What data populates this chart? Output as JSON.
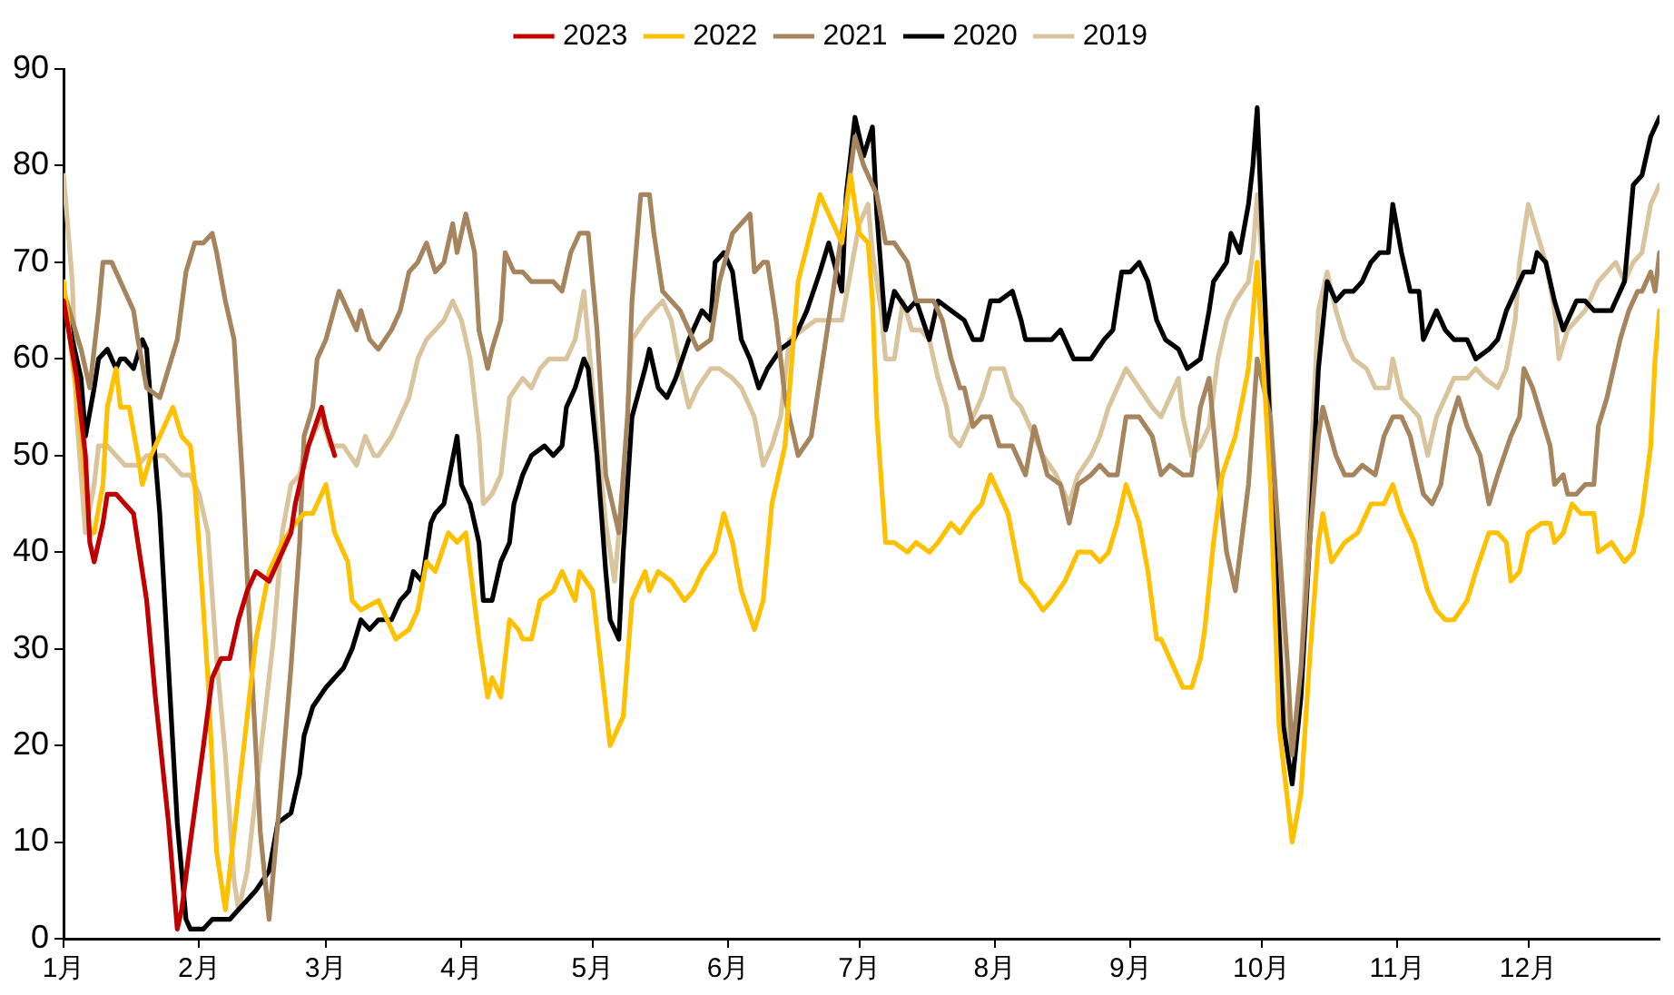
{
  "chart_data": {
    "type": "line",
    "legend": "top",
    "marker": "none",
    "xlim": [
      "--01-01",
      "--12-31"
    ],
    "xticks": [
      {
        "value": "--01-01",
        "label": "1月"
      },
      {
        "value": "--02-01",
        "label": "2月"
      },
      {
        "value": "--03-01",
        "label": "3月"
      },
      {
        "value": "--04-01",
        "label": "4月"
      },
      {
        "value": "--05-01",
        "label": "5月"
      },
      {
        "value": "--06-01",
        "label": "6月"
      },
      {
        "value": "--07-01",
        "label": "7月"
      },
      {
        "value": "--08-01",
        "label": "8月"
      },
      {
        "value": "--09-01",
        "label": "9月"
      },
      {
        "value": "--10-01",
        "label": "10月"
      },
      {
        "value": "--11-01",
        "label": "11月"
      },
      {
        "value": "--12-01",
        "label": "12月"
      }
    ],
    "ylim": [
      0,
      90
    ],
    "yticks": [
      0,
      10,
      20,
      30,
      40,
      50,
      60,
      70,
      80,
      90
    ],
    "series": [
      {
        "name": "2023",
        "color": "#c00000",
        "x": [
          "--01-01",
          "--01-04",
          "--01-06",
          "--01-07",
          "--01-08",
          "--01-10",
          "--01-11",
          "--01-13",
          "--01-15",
          "--01-17",
          "--01-18",
          "--01-20",
          "--01-22",
          "--01-25",
          "--01-27",
          "--01-28",
          "--01-30",
          "--02-02",
          "--02-04",
          "--02-06",
          "--02-08",
          "--02-10",
          "--02-12",
          "--02-14",
          "--02-17",
          "--02-19",
          "--02-22",
          "--02-23",
          "--02-25",
          "--02-26",
          "--02-29",
          "--03-01",
          "--03-03"
        ],
        "values": [
          66,
          58,
          50,
          41,
          39,
          43,
          46,
          46,
          45,
          44,
          41,
          35,
          25,
          12,
          1,
          3,
          10,
          20,
          27,
          29,
          29,
          33,
          36,
          38,
          37,
          39,
          42,
          45,
          49,
          51,
          55,
          53,
          50
        ]
      },
      {
        "name": "2022",
        "color": "#ffc000",
        "x": [
          "--01-01",
          "--01-03",
          "--01-05",
          "--01-07",
          "--01-08",
          "--01-10",
          "--01-11",
          "--01-13",
          "--01-14",
          "--01-16",
          "--01-18",
          "--01-19",
          "--01-21",
          "--01-24",
          "--01-26",
          "--01-28",
          "--01-30",
          "--01-31",
          "--02-02",
          "--02-03",
          "--02-05",
          "--02-07",
          "--02-09",
          "--02-12",
          "--02-14",
          "--02-17",
          "--02-20",
          "--02-23",
          "--02-25",
          "--02-27",
          "--03-01",
          "--03-03",
          "--03-06",
          "--03-07",
          "--03-09",
          "--03-13",
          "--03-17",
          "--03-20",
          "--03-22",
          "--03-24",
          "--03-26",
          "--03-29",
          "--03-31",
          "--04-02",
          "--04-05",
          "--04-07",
          "--04-08",
          "--04-10",
          "--04-12",
          "--04-14",
          "--04-15",
          "--04-17",
          "--04-19",
          "--04-22",
          "--04-24",
          "--04-27",
          "--04-28",
          "--05-01",
          "--05-03",
          "--05-05",
          "--05-08",
          "--05-10",
          "--05-13",
          "--05-14",
          "--05-16",
          "--05-19",
          "--05-22",
          "--05-24",
          "--05-26",
          "--05-29",
          "--05-31",
          "--06-02",
          "--06-04",
          "--06-07",
          "--06-09",
          "--06-11",
          "--06-14",
          "--06-17",
          "--06-22",
          "--06-25",
          "--06-27",
          "--06-29",
          "--07-01",
          "--07-03",
          "--07-04",
          "--07-05",
          "--07-07",
          "--07-09",
          "--07-12",
          "--07-14",
          "--07-17",
          "--07-19",
          "--07-22",
          "--07-24",
          "--07-27",
          "--07-29",
          "--07-31",
          "--08-02",
          "--08-04",
          "--08-07",
          "--08-09",
          "--08-12",
          "--08-14",
          "--08-17",
          "--08-20",
          "--08-23",
          "--08-25",
          "--08-27",
          "--08-29",
          "--08-31",
          "--09-03",
          "--09-05",
          "--09-07",
          "--09-08",
          "--09-10",
          "--09-13",
          "--09-15",
          "--09-17",
          "--09-18",
          "--09-20",
          "--09-22",
          "--09-25",
          "--09-28",
          "--09-30",
          "--10-03",
          "--10-05",
          "--10-08",
          "--10-10",
          "--10-12",
          "--10-14",
          "--10-15",
          "--10-17",
          "--10-20",
          "--10-23",
          "--10-26",
          "--10-29",
          "--10-31",
          "--11-02",
          "--11-05",
          "--11-08",
          "--11-10",
          "--11-12",
          "--11-14",
          "--11-17",
          "--11-19",
          "--11-22",
          "--11-24",
          "--11-26",
          "--11-27",
          "--11-29",
          "--12-01",
          "--12-04",
          "--12-06",
          "--12-07",
          "--12-09",
          "--12-11",
          "--12-13",
          "--12-16",
          "--12-17",
          "--12-20",
          "--12-23",
          "--12-25",
          "--12-27",
          "--12-29",
          "--12-30",
          "--12-31"
        ],
        "values": [
          68,
          60,
          52,
          42,
          42,
          47,
          55,
          59,
          55,
          55,
          50,
          47,
          50,
          53,
          55,
          52,
          51,
          47,
          34,
          27,
          9,
          3,
          11,
          23,
          31,
          38,
          41,
          43,
          44,
          44,
          47,
          42,
          39,
          35,
          34,
          35,
          31,
          32,
          34,
          39,
          38,
          42,
          41,
          42,
          31,
          25,
          27,
          25,
          33,
          32,
          31,
          31,
          35,
          36,
          38,
          35,
          38,
          36,
          28,
          20,
          23,
          35,
          38,
          36,
          38,
          37,
          35,
          36,
          38,
          40,
          44,
          41,
          36,
          32,
          35,
          45,
          51,
          68,
          77,
          74,
          72,
          79,
          73,
          72,
          66,
          54,
          41,
          41,
          40,
          41,
          40,
          41,
          43,
          42,
          44,
          45,
          48,
          46,
          44,
          37,
          36,
          34,
          35,
          37,
          40,
          40,
          39,
          40,
          43,
          47,
          43,
          38,
          31,
          31,
          29,
          26,
          26,
          29,
          32,
          41,
          48,
          52,
          59,
          70,
          47,
          22,
          10,
          15,
          29,
          41,
          44,
          39,
          41,
          42,
          45,
          45,
          47,
          44,
          41,
          36,
          34,
          33,
          33,
          35,
          38,
          42,
          42,
          41,
          37,
          38,
          42,
          43,
          43,
          41,
          42,
          45,
          44,
          44,
          40,
          41,
          39,
          40,
          44,
          51,
          60,
          65
        ]
      },
      {
        "name": "2021",
        "color": "#a5845e",
        "x": [
          "--01-01",
          "--01-03",
          "--01-05",
          "--01-07",
          "--01-09",
          "--01-10",
          "--01-12",
          "--01-14",
          "--01-16",
          "--01-17",
          "--01-18",
          "--01-20",
          "--01-23",
          "--01-25",
          "--01-27",
          "--01-29",
          "--01-31",
          "--02-02",
          "--02-04",
          "--02-05",
          "--02-07",
          "--02-09",
          "--02-11",
          "--02-13",
          "--02-15",
          "--02-17",
          "--02-19",
          "--02-22",
          "--02-24",
          "--02-25",
          "--02-27",
          "--02-28",
          "--03-01",
          "--03-04",
          "--03-06",
          "--03-08",
          "--03-09",
          "--03-11",
          "--03-13",
          "--03-16",
          "--03-18",
          "--03-20",
          "--03-22",
          "--03-24",
          "--03-26",
          "--03-28",
          "--03-30",
          "--03-31",
          "--04-02",
          "--04-04",
          "--04-05",
          "--04-07",
          "--04-08",
          "--04-10",
          "--04-11",
          "--04-13",
          "--04-15",
          "--04-17",
          "--04-20",
          "--04-22",
          "--04-24",
          "--04-26",
          "--04-28",
          "--04-30",
          "--05-02",
          "--05-04",
          "--05-07",
          "--05-09",
          "--05-10",
          "--05-12",
          "--05-14",
          "--05-15",
          "--05-17",
          "--05-19",
          "--05-21",
          "--05-23",
          "--05-25",
          "--05-28",
          "--05-30",
          "--06-02",
          "--06-04",
          "--06-06",
          "--06-07",
          "--06-09",
          "--06-10",
          "--06-12",
          "--06-14",
          "--06-17",
          "--06-20",
          "--06-22",
          "--06-24",
          "--06-26",
          "--06-28",
          "--06-30",
          "--07-02",
          "--07-05",
          "--07-07",
          "--07-09",
          "--07-12",
          "--07-14",
          "--07-16",
          "--07-18",
          "--07-20",
          "--07-22",
          "--07-24",
          "--07-25",
          "--07-27",
          "--07-29",
          "--07-31",
          "--08-02",
          "--08-05",
          "--08-08",
          "--08-10",
          "--08-13",
          "--08-16",
          "--08-18",
          "--08-20",
          "--08-23",
          "--08-25",
          "--08-27",
          "--08-29",
          "--08-31",
          "--09-03",
          "--09-06",
          "--09-08",
          "--09-10",
          "--09-13",
          "--09-15",
          "--09-17",
          "--09-19",
          "--09-21",
          "--09-23",
          "--09-25",
          "--09-28",
          "--09-30",
          "--10-03",
          "--10-05",
          "--10-07",
          "--10-08",
          "--10-10",
          "--10-12",
          "--10-14",
          "--10-15",
          "--10-18",
          "--10-20",
          "--10-22",
          "--10-24",
          "--10-27",
          "--10-29",
          "--10-31",
          "--11-02",
          "--11-04",
          "--11-07",
          "--11-09",
          "--11-11",
          "--11-13",
          "--11-15",
          "--11-17",
          "--11-20",
          "--11-22",
          "--11-24",
          "--11-27",
          "--11-29",
          "--11-30",
          "--12-02",
          "--12-04",
          "--12-06",
          "--12-07",
          "--12-09",
          "--12-10",
          "--12-12",
          "--12-14",
          "--12-16",
          "--12-17",
          "--12-19",
          "--12-22",
          "--12-24",
          "--12-26",
          "--12-27",
          "--12-29",
          "--12-30",
          "--12-31"
        ],
        "values": [
          67,
          64,
          61,
          57,
          65,
          70,
          70,
          68,
          66,
          65,
          62,
          57,
          56,
          59,
          62,
          69,
          72,
          72,
          73,
          71,
          66,
          62,
          47,
          28,
          11,
          2,
          12,
          28,
          41,
          52,
          55,
          60,
          62,
          67,
          65,
          63,
          65,
          62,
          61,
          63,
          65,
          69,
          70,
          72,
          69,
          70,
          74,
          71,
          75,
          71,
          63,
          59,
          61,
          64,
          71,
          69,
          69,
          68,
          68,
          68,
          67,
          71,
          73,
          73,
          63,
          48,
          42,
          54,
          66,
          77,
          77,
          73,
          67,
          66,
          65,
          63,
          61,
          62,
          68,
          73,
          74,
          75,
          69,
          70,
          70,
          64,
          56,
          50,
          52,
          58,
          64,
          70,
          76,
          83,
          80,
          77,
          72,
          72,
          70,
          66,
          66,
          66,
          64,
          60,
          57,
          57,
          53,
          54,
          54,
          51,
          51,
          48,
          53,
          48,
          47,
          43,
          47,
          48,
          49,
          48,
          48,
          54,
          54,
          52,
          48,
          49,
          48,
          48,
          55,
          58,
          48,
          40,
          36,
          47,
          60,
          54,
          41,
          28,
          19,
          28,
          41,
          52,
          55,
          50,
          48,
          48,
          49,
          48,
          52,
          54,
          54,
          52,
          46,
          45,
          47,
          53,
          56,
          53,
          50,
          45,
          48,
          52,
          54,
          59,
          57,
          54,
          51,
          47,
          48,
          46,
          46,
          47,
          47,
          53,
          56,
          62,
          65,
          67,
          67,
          69,
          67,
          71
        ]
      },
      {
        "name": "2020",
        "color": "#000000",
        "x": [
          "--01-01",
          "--01-03",
          "--01-05",
          "--01-06",
          "--01-08",
          "--01-09",
          "--01-11",
          "--01-13",
          "--01-14",
          "--01-15",
          "--01-17",
          "--01-19",
          "--01-20",
          "--01-21",
          "--01-23",
          "--01-25",
          "--01-27",
          "--01-29",
          "--01-30",
          "--02-02",
          "--02-04",
          "--02-06",
          "--02-08",
          "--02-10",
          "--02-12",
          "--02-14",
          "--02-17",
          "--02-19",
          "--02-22",
          "--02-24",
          "--02-25",
          "--02-27",
          "--03-01",
          "--03-03",
          "--03-05",
          "--03-07",
          "--03-09",
          "--03-11",
          "--03-13",
          "--03-16",
          "--03-18",
          "--03-20",
          "--03-21",
          "--03-23",
          "--03-25",
          "--03-26",
          "--03-28",
          "--03-31",
          "--04-01",
          "--04-03",
          "--04-05",
          "--04-06",
          "--04-08",
          "--04-10",
          "--04-12",
          "--04-13",
          "--04-15",
          "--04-17",
          "--04-20",
          "--04-22",
          "--04-24",
          "--04-25",
          "--04-27",
          "--04-29",
          "--04-30",
          "--05-02",
          "--05-04",
          "--05-05",
          "--05-07",
          "--05-08",
          "--05-10",
          "--05-13",
          "--05-14",
          "--05-16",
          "--05-18",
          "--05-20",
          "--05-23",
          "--05-25",
          "--05-26",
          "--05-28",
          "--05-29",
          "--05-31",
          "--06-02",
          "--06-04",
          "--06-06",
          "--06-08",
          "--06-10",
          "--06-13",
          "--06-16",
          "--06-19",
          "--06-22",
          "--06-24",
          "--06-27",
          "--06-28",
          "--06-30",
          "--07-02",
          "--07-04",
          "--07-05",
          "--07-07",
          "--07-09",
          "--07-12",
          "--07-14",
          "--07-17",
          "--07-19",
          "--07-22",
          "--07-25",
          "--07-27",
          "--07-29",
          "--07-31",
          "--08-02",
          "--08-05",
          "--08-07",
          "--08-08",
          "--08-11",
          "--08-14",
          "--08-16",
          "--08-19",
          "--08-22",
          "--08-23",
          "--08-26",
          "--08-28",
          "--08-30",
          "--09-01",
          "--09-03",
          "--09-05",
          "--09-07",
          "--09-09",
          "--09-12",
          "--09-14",
          "--09-17",
          "--09-19",
          "--09-20",
          "--09-23",
          "--09-24",
          "--09-26",
          "--09-28",
          "--09-29",
          "--09-30",
          "--10-02",
          "--10-04",
          "--10-06",
          "--10-08",
          "--10-10",
          "--10-12",
          "--10-14",
          "--10-16",
          "--10-18",
          "--10-20",
          "--10-22",
          "--10-24",
          "--10-26",
          "--10-28",
          "--10-30",
          "--10-31",
          "--11-02",
          "--11-04",
          "--11-06",
          "--11-07",
          "--11-10",
          "--11-12",
          "--11-14",
          "--11-17",
          "--11-18",
          "--11-19",
          "--11-22",
          "--11-24",
          "--11-26",
          "--11-28",
          "--11-30",
          "--12-02",
          "--12-03",
          "--12-05",
          "--12-07",
          "--12-09",
          "--12-12",
          "--12-14",
          "--12-16",
          "--12-18",
          "--12-20",
          "--12-22",
          "--12-23",
          "--12-25",
          "--12-27",
          "--12-29",
          "--12-31"
        ],
        "values": [
          67,
          62,
          58,
          52,
          57,
          60,
          61,
          59,
          60,
          60,
          59,
          62,
          61,
          55,
          44,
          28,
          12,
          2,
          1,
          1,
          2,
          2,
          2,
          3,
          4,
          5,
          7,
          12,
          13,
          17,
          21,
          24,
          26,
          27,
          28,
          30,
          33,
          32,
          33,
          33,
          35,
          36,
          38,
          37,
          43,
          44,
          45,
          52,
          47,
          45,
          41,
          35,
          35,
          39,
          41,
          45,
          48,
          50,
          51,
          50,
          51,
          55,
          57,
          60,
          59,
          50,
          38,
          33,
          31,
          40,
          54,
          59,
          61,
          57,
          56,
          58,
          62,
          64,
          65,
          64,
          70,
          71,
          69,
          62,
          60,
          57,
          59,
          61,
          62,
          65,
          69,
          72,
          67,
          77,
          85,
          81,
          84,
          75,
          63,
          67,
          65,
          66,
          62,
          66,
          65,
          64,
          62,
          62,
          66,
          66,
          67,
          64,
          62,
          62,
          62,
          63,
          60,
          60,
          60,
          62,
          63,
          69,
          69,
          70,
          68,
          64,
          62,
          61,
          59,
          60,
          65,
          68,
          70,
          73,
          71,
          76,
          80,
          86,
          63,
          41,
          22,
          16,
          25,
          41,
          59,
          68,
          66,
          67,
          67,
          68,
          70,
          71,
          71,
          76,
          71,
          67,
          67,
          62,
          65,
          63,
          62,
          62,
          61,
          60,
          61,
          62,
          65,
          67,
          69,
          69,
          71,
          70,
          66,
          63,
          66,
          66,
          65,
          65,
          65,
          67,
          68,
          78,
          79,
          83,
          85
        ]
      },
      {
        "name": "2019",
        "color": "#d9c49d",
        "x": [
          "--01-01",
          "--01-03",
          "--01-04",
          "--01-06",
          "--01-08",
          "--01-09",
          "--01-11",
          "--01-13",
          "--01-15",
          "--01-18",
          "--01-20",
          "--01-22",
          "--01-24",
          "--01-26",
          "--01-28",
          "--01-30",
          "--02-01",
          "--02-03",
          "--02-05",
          "--02-07",
          "--02-09",
          "--02-10",
          "--02-12",
          "--02-15",
          "--02-18",
          "--02-20",
          "--02-22",
          "--02-24",
          "--02-25",
          "--02-27",
          "--02-29",
          "--03-02",
          "--03-05",
          "--03-08",
          "--03-10",
          "--03-12",
          "--03-13",
          "--03-16",
          "--03-18",
          "--03-20",
          "--03-22",
          "--03-24",
          "--03-26",
          "--03-28",
          "--03-30",
          "--04-01",
          "--04-03",
          "--04-05",
          "--04-06",
          "--04-08",
          "--04-10",
          "--04-12",
          "--04-15",
          "--04-17",
          "--04-19",
          "--04-21",
          "--04-23",
          "--04-25",
          "--04-27",
          "--04-29",
          "--04-30",
          "--05-02",
          "--05-04",
          "--05-06",
          "--05-08",
          "--05-10",
          "--05-13",
          "--05-15",
          "--05-17",
          "--05-19",
          "--05-21",
          "--05-23",
          "--05-25",
          "--05-28",
          "--05-30",
          "--06-02",
          "--06-04",
          "--06-07",
          "--06-09",
          "--06-11",
          "--06-13",
          "--06-15",
          "--06-18",
          "--06-21",
          "--06-24",
          "--06-27",
          "--06-29",
          "--07-01",
          "--07-03",
          "--07-04",
          "--07-06",
          "--07-07",
          "--07-09",
          "--07-11",
          "--07-13",
          "--07-15",
          "--07-17",
          "--07-19",
          "--07-21",
          "--07-22",
          "--07-24",
          "--07-27",
          "--07-29",
          "--07-31",
          "--08-03",
          "--08-05",
          "--08-07",
          "--08-09",
          "--08-12",
          "--08-15",
          "--08-18",
          "--08-20",
          "--08-23",
          "--08-25",
          "--08-27",
          "--08-29",
          "--08-31",
          "--09-03",
          "--09-06",
          "--09-08",
          "--09-10",
          "--09-12",
          "--09-13",
          "--09-15",
          "--09-17",
          "--09-19",
          "--09-21",
          "--09-23",
          "--09-25",
          "--09-28",
          "--09-29",
          "--09-30",
          "--10-02",
          "--10-04",
          "--10-06",
          "--10-08",
          "--10-10",
          "--10-12",
          "--10-14",
          "--10-16",
          "--10-18",
          "--10-20",
          "--10-22",
          "--10-25",
          "--10-27",
          "--10-28",
          "--10-30",
          "--10-31",
          "--11-02",
          "--11-04",
          "--11-06",
          "--11-08",
          "--11-10",
          "--11-12",
          "--11-14",
          "--11-17",
          "--11-19",
          "--11-21",
          "--11-24",
          "--11-26",
          "--11-28",
          "--11-29",
          "--12-01",
          "--12-03",
          "--12-05",
          "--12-07",
          "--12-08",
          "--12-10",
          "--12-12",
          "--12-14",
          "--12-17",
          "--12-19",
          "--12-21",
          "--12-23",
          "--12-25",
          "--12-27",
          "--12-29",
          "--12-31"
        ],
        "values": [
          79,
          68,
          54,
          42,
          47,
          51,
          51,
          50,
          49,
          49,
          50,
          50,
          50,
          49,
          48,
          48,
          46,
          42,
          29,
          19,
          6,
          3,
          7,
          19,
          31,
          42,
          47,
          48,
          50,
          52,
          54,
          51,
          51,
          49,
          52,
          50,
          50,
          52,
          54,
          56,
          60,
          62,
          63,
          64,
          66,
          64,
          60,
          52,
          45,
          46,
          48,
          56,
          58,
          57,
          59,
          60,
          60,
          60,
          62,
          67,
          62,
          52,
          43,
          37,
          47,
          62,
          64,
          65,
          66,
          64,
          59,
          55,
          57,
          59,
          59,
          58,
          57,
          54,
          49,
          51,
          54,
          62,
          63,
          64,
          64,
          64,
          69,
          74,
          76,
          71,
          65,
          60,
          60,
          66,
          63,
          63,
          62,
          58,
          55,
          52,
          51,
          54,
          56,
          59,
          59,
          56,
          55,
          53,
          50,
          48,
          45,
          48,
          50,
          52,
          55,
          57,
          59,
          57,
          55,
          54,
          56,
          58,
          54,
          50,
          51,
          53,
          60,
          64,
          66,
          68,
          71,
          77,
          65,
          44,
          25,
          19,
          28,
          47,
          65,
          69,
          65,
          62,
          60,
          59,
          57,
          57,
          57,
          60,
          56,
          55,
          54,
          50,
          54,
          56,
          58,
          58,
          59,
          58,
          57,
          59,
          64,
          70,
          76,
          73,
          70,
          65,
          60,
          63,
          64,
          65,
          68,
          69,
          70,
          68,
          70,
          71,
          76,
          78
        ]
      }
    ]
  }
}
